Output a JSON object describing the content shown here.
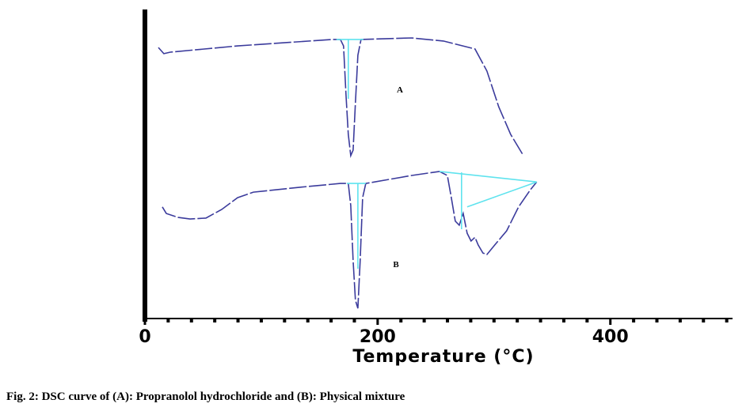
{
  "chart_data": {
    "type": "line",
    "xlabel": "Temperature (°C)",
    "caption": "Fig. 2: DSC curve of (A): Propranolol hydrochloride and (B): Physical mixture",
    "annotations": [
      "A",
      "B"
    ],
    "xlim": [
      0,
      505
    ],
    "xticks": [
      0,
      200,
      400
    ],
    "xminor": [
      20,
      40,
      60,
      80,
      100,
      120,
      140,
      160,
      180,
      220,
      240,
      260,
      280,
      300,
      320,
      340,
      360,
      380,
      420,
      440,
      460,
      480,
      500
    ],
    "ylim": [
      0,
      100
    ],
    "series": [
      {
        "color": "#3b3b9c",
        "x": [
          11.6,
          16.3,
          21.8,
          79.6,
          161.2,
          168.0,
          170.7,
          172.8,
          174.8,
          176.9,
          178.9,
          180.9,
          183.0,
          185.7,
          229.3,
          256.5,
          283.7,
          293.9,
          304.1,
          314.3,
          324.5
        ],
        "values": [
          87.7,
          85.7,
          86.2,
          88.2,
          90.3,
          90.3,
          88.2,
          72.4,
          59.6,
          52.7,
          54.5,
          69.8,
          85.2,
          90.3,
          90.8,
          89.8,
          87.2,
          80.1,
          68.5,
          59.6,
          53.2
        ]
      },
      {
        "color": "#3b3b9c",
        "x": [
          15.0,
          18.4,
          28.6,
          38.8,
          52.4,
          66.0,
          79.6,
          93.2,
          134.0,
          168.0,
          174.8,
          176.9,
          178.9,
          180.9,
          183.0,
          185.0,
          187.1,
          189.8,
          229.3,
          253.1,
          259.9,
          263.3,
          266.7,
          270.1,
          273.5,
          276.9,
          280.3,
          283.7,
          286.4,
          290.5,
          293.9,
          300.7,
          310.9,
          321.1,
          331.3,
          336.7
        ],
        "values": [
          36.1,
          34.0,
          32.7,
          32.2,
          32.5,
          35.3,
          39.1,
          40.9,
          42.5,
          43.7,
          43.7,
          36.6,
          18.7,
          5.9,
          3.3,
          18.7,
          39.1,
          43.7,
          46.3,
          47.6,
          46.3,
          39.1,
          31.5,
          30.2,
          34.0,
          27.6,
          25.1,
          26.3,
          23.8,
          21.2,
          20.7,
          23.8,
          28.4,
          36.1,
          41.7,
          44.2
        ]
      },
      {
        "color": "#5fe3ee",
        "x": [
          164.6,
          187.8,
          null,
          174.8,
          174.8,
          null,
          173.5,
          189.8,
          null,
          183.0,
          183.0,
          null,
          253.1,
          336.7,
          null,
          272.1,
          272.1,
          null,
          276.9,
          336.7
        ],
        "values": [
          90.3,
          90.3,
          null,
          90.3,
          71.1,
          null,
          43.7,
          43.7,
          null,
          43.7,
          16.1,
          null,
          47.6,
          44.2,
          null,
          47.3,
          28.9,
          null,
          36.1,
          44.2
        ]
      }
    ]
  }
}
